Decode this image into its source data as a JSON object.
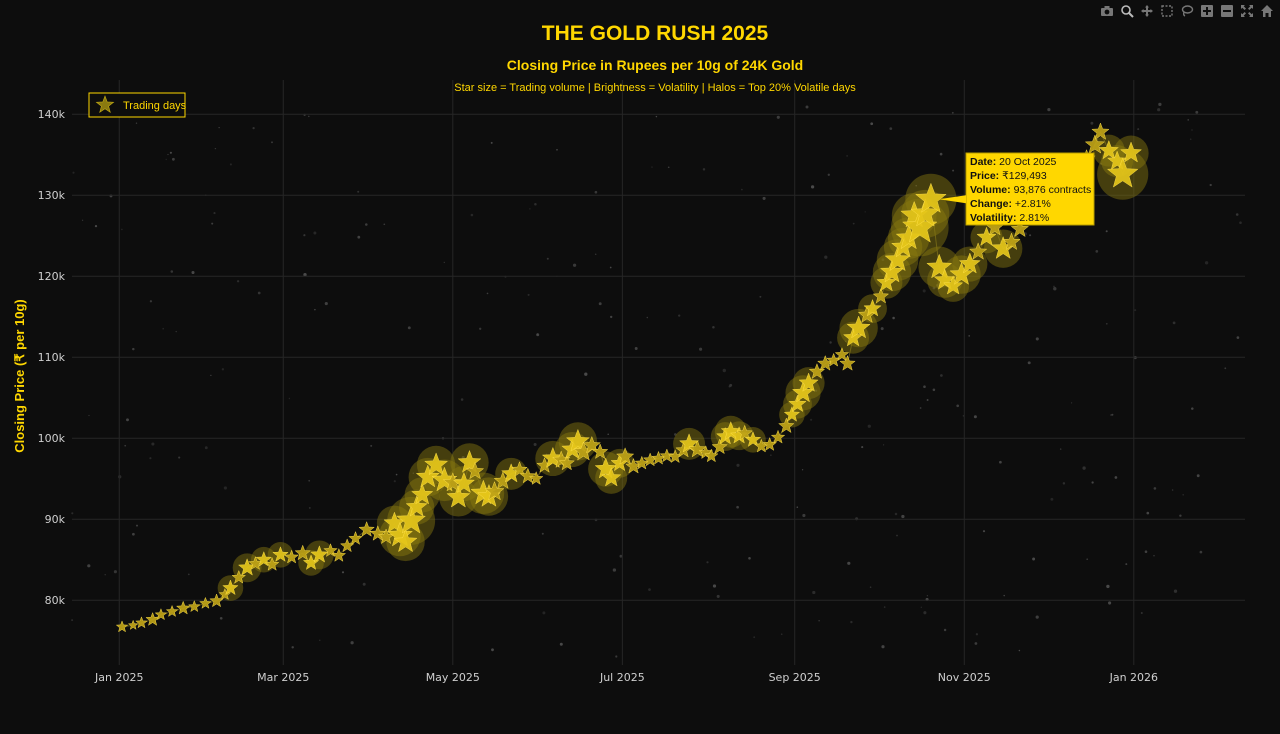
{
  "colors": {
    "accent": "#FFD700",
    "background": "#0d0d0d",
    "grid": "#262626",
    "halo": "#8a7a10",
    "tooltip_bg": "#FFD700"
  },
  "modebar": [
    "camera-icon",
    "zoom-icon",
    "pan-icon",
    "box-select-icon",
    "lasso-select-icon",
    "zoom-in-icon",
    "zoom-out-icon",
    "autoscale-icon",
    "reset-axes-icon"
  ],
  "chart_data": {
    "type": "scatter",
    "title": "THE GOLD RUSH 2025",
    "subtitle": "Closing Price in Rupees per 10g of 24K Gold",
    "caption": "Star size = Trading volume | Brightness = Volatility | Halos = Top 20% Volatile days",
    "ylabel": "Closing Price (₹ per 10g)",
    "xlabel": "",
    "xlim": [
      "2024-12-15",
      "2026-02-10"
    ],
    "ylim": [
      72000,
      142000
    ],
    "x_ticks": [
      {
        "date": "2025-01-01",
        "label": "Jan 2025"
      },
      {
        "date": "2025-03-01",
        "label": "Mar 2025"
      },
      {
        "date": "2025-05-01",
        "label": "May 2025"
      },
      {
        "date": "2025-07-01",
        "label": "Jul 2025"
      },
      {
        "date": "2025-09-01",
        "label": "Sep 2025"
      },
      {
        "date": "2025-11-01",
        "label": "Nov 2025"
      },
      {
        "date": "2026-01-01",
        "label": "Jan 2026"
      }
    ],
    "y_ticks": [
      {
        "value": 80000,
        "label": "80k"
      },
      {
        "value": 90000,
        "label": "90k"
      },
      {
        "value": 100000,
        "label": "100k"
      },
      {
        "value": 110000,
        "label": "110k"
      },
      {
        "value": 120000,
        "label": "120k"
      },
      {
        "value": 130000,
        "label": "130k"
      },
      {
        "value": 140000,
        "label": "140k"
      }
    ],
    "grid": true,
    "legend": {
      "position": "top-left",
      "entries": [
        "Trading days"
      ]
    },
    "series": [
      {
        "name": "Trading days",
        "points": [
          {
            "x": "2025-01-02",
            "y": 76700,
            "size": 6,
            "halo": false
          },
          {
            "x": "2025-01-06",
            "y": 76900,
            "size": 5,
            "halo": false
          },
          {
            "x": "2025-01-09",
            "y": 77200,
            "size": 6,
            "halo": false
          },
          {
            "x": "2025-01-13",
            "y": 77600,
            "size": 7,
            "halo": false
          },
          {
            "x": "2025-01-16",
            "y": 78200,
            "size": 6,
            "halo": false
          },
          {
            "x": "2025-01-20",
            "y": 78600,
            "size": 6,
            "halo": false
          },
          {
            "x": "2025-01-24",
            "y": 79000,
            "size": 7,
            "halo": false
          },
          {
            "x": "2025-01-28",
            "y": 79200,
            "size": 6,
            "halo": false
          },
          {
            "x": "2025-02-01",
            "y": 79600,
            "size": 6,
            "halo": false
          },
          {
            "x": "2025-02-05",
            "y": 79900,
            "size": 7,
            "halo": false
          },
          {
            "x": "2025-02-08",
            "y": 80700,
            "size": 6,
            "halo": false
          },
          {
            "x": "2025-02-10",
            "y": 81500,
            "size": 8,
            "halo": true
          },
          {
            "x": "2025-02-13",
            "y": 82800,
            "size": 7,
            "halo": false
          },
          {
            "x": "2025-02-16",
            "y": 84000,
            "size": 9,
            "halo": true
          },
          {
            "x": "2025-02-19",
            "y": 84500,
            "size": 7,
            "halo": false
          },
          {
            "x": "2025-02-22",
            "y": 85000,
            "size": 8,
            "halo": true
          },
          {
            "x": "2025-02-25",
            "y": 84400,
            "size": 7,
            "halo": false
          },
          {
            "x": "2025-02-28",
            "y": 85600,
            "size": 8,
            "halo": true
          },
          {
            "x": "2025-03-04",
            "y": 85300,
            "size": 7,
            "halo": false
          },
          {
            "x": "2025-03-08",
            "y": 85800,
            "size": 8,
            "halo": false
          },
          {
            "x": "2025-03-11",
            "y": 84600,
            "size": 8,
            "halo": true
          },
          {
            "x": "2025-03-14",
            "y": 85600,
            "size": 9,
            "halo": true
          },
          {
            "x": "2025-03-18",
            "y": 86100,
            "size": 7,
            "halo": false
          },
          {
            "x": "2025-03-21",
            "y": 85500,
            "size": 7,
            "halo": false
          },
          {
            "x": "2025-03-24",
            "y": 86700,
            "size": 7,
            "halo": false
          },
          {
            "x": "2025-03-27",
            "y": 87600,
            "size": 7,
            "halo": false
          },
          {
            "x": "2025-03-31",
            "y": 88700,
            "size": 8,
            "halo": false
          },
          {
            "x": "2025-04-04",
            "y": 88200,
            "size": 8,
            "halo": false
          },
          {
            "x": "2025-04-07",
            "y": 87800,
            "size": 8,
            "halo": false
          },
          {
            "x": "2025-04-10",
            "y": 89500,
            "size": 11,
            "halo": true
          },
          {
            "x": "2025-04-12",
            "y": 88000,
            "size": 13,
            "halo": true
          },
          {
            "x": "2025-04-14",
            "y": 87200,
            "size": 12,
            "halo": true
          },
          {
            "x": "2025-04-16",
            "y": 89800,
            "size": 15,
            "halo": true
          },
          {
            "x": "2025-04-18",
            "y": 91500,
            "size": 11,
            "halo": true
          },
          {
            "x": "2025-04-20",
            "y": 93000,
            "size": 11,
            "halo": true
          },
          {
            "x": "2025-04-22",
            "y": 95200,
            "size": 12,
            "halo": true
          },
          {
            "x": "2025-04-25",
            "y": 96700,
            "size": 12,
            "halo": true
          },
          {
            "x": "2025-04-28",
            "y": 94800,
            "size": 13,
            "halo": true
          },
          {
            "x": "2025-05-01",
            "y": 94500,
            "size": 10,
            "halo": false
          },
          {
            "x": "2025-05-03",
            "y": 92700,
            "size": 12,
            "halo": true
          },
          {
            "x": "2025-05-05",
            "y": 94400,
            "size": 11,
            "halo": true
          },
          {
            "x": "2025-05-07",
            "y": 97000,
            "size": 12,
            "halo": true
          },
          {
            "x": "2025-05-09",
            "y": 95900,
            "size": 9,
            "halo": false
          },
          {
            "x": "2025-05-12",
            "y": 93200,
            "size": 13,
            "halo": true
          },
          {
            "x": "2025-05-14",
            "y": 92800,
            "size": 12,
            "halo": true
          },
          {
            "x": "2025-05-16",
            "y": 93400,
            "size": 10,
            "halo": false
          },
          {
            "x": "2025-05-19",
            "y": 94700,
            "size": 9,
            "halo": false
          },
          {
            "x": "2025-05-22",
            "y": 95600,
            "size": 10,
            "halo": true
          },
          {
            "x": "2025-05-25",
            "y": 96100,
            "size": 8,
            "halo": false
          },
          {
            "x": "2025-05-28",
            "y": 95300,
            "size": 8,
            "halo": false
          },
          {
            "x": "2025-05-31",
            "y": 95000,
            "size": 7,
            "halo": false
          },
          {
            "x": "2025-06-03",
            "y": 96600,
            "size": 8,
            "halo": false
          },
          {
            "x": "2025-06-06",
            "y": 97500,
            "size": 11,
            "halo": true
          },
          {
            "x": "2025-06-09",
            "y": 97300,
            "size": 9,
            "halo": false
          },
          {
            "x": "2025-06-11",
            "y": 96900,
            "size": 8,
            "halo": false
          },
          {
            "x": "2025-06-13",
            "y": 98600,
            "size": 11,
            "halo": true
          },
          {
            "x": "2025-06-15",
            "y": 99600,
            "size": 12,
            "halo": true
          },
          {
            "x": "2025-06-17",
            "y": 98300,
            "size": 10,
            "halo": false
          },
          {
            "x": "2025-06-20",
            "y": 99100,
            "size": 9,
            "halo": false
          },
          {
            "x": "2025-06-23",
            "y": 98300,
            "size": 8,
            "halo": false
          },
          {
            "x": "2025-06-25",
            "y": 96200,
            "size": 11,
            "halo": true
          },
          {
            "x": "2025-06-27",
            "y": 95100,
            "size": 10,
            "halo": true
          },
          {
            "x": "2025-06-30",
            "y": 96900,
            "size": 9,
            "halo": true
          },
          {
            "x": "2025-07-02",
            "y": 97700,
            "size": 9,
            "halo": false
          },
          {
            "x": "2025-07-05",
            "y": 96500,
            "size": 8,
            "halo": false
          },
          {
            "x": "2025-07-08",
            "y": 96900,
            "size": 7,
            "halo": false
          },
          {
            "x": "2025-07-11",
            "y": 97300,
            "size": 7,
            "halo": false
          },
          {
            "x": "2025-07-14",
            "y": 97500,
            "size": 7,
            "halo": false
          },
          {
            "x": "2025-07-17",
            "y": 97800,
            "size": 7,
            "halo": false
          },
          {
            "x": "2025-07-20",
            "y": 97700,
            "size": 7,
            "halo": false
          },
          {
            "x": "2025-07-23",
            "y": 98500,
            "size": 8,
            "halo": false
          },
          {
            "x": "2025-07-25",
            "y": 99300,
            "size": 10,
            "halo": true
          },
          {
            "x": "2025-07-28",
            "y": 98600,
            "size": 9,
            "halo": false
          },
          {
            "x": "2025-07-31",
            "y": 98200,
            "size": 7,
            "halo": false
          },
          {
            "x": "2025-08-02",
            "y": 97800,
            "size": 7,
            "halo": false
          },
          {
            "x": "2025-08-05",
            "y": 98900,
            "size": 8,
            "halo": false
          },
          {
            "x": "2025-08-07",
            "y": 100200,
            "size": 9,
            "halo": true
          },
          {
            "x": "2025-08-09",
            "y": 100800,
            "size": 10,
            "halo": true
          },
          {
            "x": "2025-08-12",
            "y": 100300,
            "size": 9,
            "halo": true
          },
          {
            "x": "2025-08-14",
            "y": 100600,
            "size": 8,
            "halo": false
          },
          {
            "x": "2025-08-17",
            "y": 99800,
            "size": 8,
            "halo": true
          },
          {
            "x": "2025-08-20",
            "y": 99000,
            "size": 7,
            "halo": false
          },
          {
            "x": "2025-08-23",
            "y": 99200,
            "size": 7,
            "halo": false
          },
          {
            "x": "2025-08-26",
            "y": 100100,
            "size": 7,
            "halo": false
          },
          {
            "x": "2025-08-29",
            "y": 101500,
            "size": 8,
            "halo": false
          },
          {
            "x": "2025-08-31",
            "y": 102900,
            "size": 8,
            "halo": true
          },
          {
            "x": "2025-09-02",
            "y": 104200,
            "size": 9,
            "halo": true
          },
          {
            "x": "2025-09-04",
            "y": 105600,
            "size": 11,
            "halo": true
          },
          {
            "x": "2025-09-06",
            "y": 106800,
            "size": 10,
            "halo": true
          },
          {
            "x": "2025-09-09",
            "y": 108200,
            "size": 8,
            "halo": false
          },
          {
            "x": "2025-09-12",
            "y": 109200,
            "size": 8,
            "halo": false
          },
          {
            "x": "2025-09-15",
            "y": 109600,
            "size": 7,
            "halo": false
          },
          {
            "x": "2025-09-18",
            "y": 110300,
            "size": 7,
            "halo": false
          },
          {
            "x": "2025-09-20",
            "y": 109200,
            "size": 8,
            "halo": false
          },
          {
            "x": "2025-09-22",
            "y": 112400,
            "size": 10,
            "halo": true
          },
          {
            "x": "2025-09-24",
            "y": 113600,
            "size": 12,
            "halo": true
          },
          {
            "x": "2025-09-27",
            "y": 115200,
            "size": 9,
            "halo": false
          },
          {
            "x": "2025-09-29",
            "y": 116000,
            "size": 9,
            "halo": true
          },
          {
            "x": "2025-10-02",
            "y": 117500,
            "size": 8,
            "halo": false
          },
          {
            "x": "2025-10-04",
            "y": 119200,
            "size": 10,
            "halo": true
          },
          {
            "x": "2025-10-06",
            "y": 120500,
            "size": 12,
            "halo": true
          },
          {
            "x": "2025-10-08",
            "y": 122000,
            "size": 13,
            "halo": true
          },
          {
            "x": "2025-10-10",
            "y": 123600,
            "size": 12,
            "halo": true
          },
          {
            "x": "2025-10-12",
            "y": 124700,
            "size": 13,
            "halo": true
          },
          {
            "x": "2025-10-14",
            "y": 127500,
            "size": 14,
            "halo": true
          },
          {
            "x": "2025-10-16",
            "y": 126000,
            "size": 18,
            "halo": true
          },
          {
            "x": "2025-10-18",
            "y": 127700,
            "size": 15,
            "halo": true
          },
          {
            "x": "2025-10-20",
            "y": 129493,
            "size": 16,
            "halo": true
          },
          {
            "x": "2025-10-23",
            "y": 121100,
            "size": 13,
            "halo": true
          },
          {
            "x": "2025-10-25",
            "y": 119500,
            "size": 11,
            "halo": true
          },
          {
            "x": "2025-10-28",
            "y": 118800,
            "size": 10,
            "halo": true
          },
          {
            "x": "2025-10-31",
            "y": 120200,
            "size": 12,
            "halo": true
          },
          {
            "x": "2025-11-03",
            "y": 121500,
            "size": 11,
            "halo": true
          },
          {
            "x": "2025-11-06",
            "y": 123000,
            "size": 9,
            "halo": false
          },
          {
            "x": "2025-11-09",
            "y": 124800,
            "size": 10,
            "halo": true
          },
          {
            "x": "2025-11-12",
            "y": 126000,
            "size": 9,
            "halo": false
          },
          {
            "x": "2025-11-15",
            "y": 123400,
            "size": 12,
            "halo": true
          },
          {
            "x": "2025-11-18",
            "y": 124200,
            "size": 9,
            "halo": false
          },
          {
            "x": "2025-11-21",
            "y": 125800,
            "size": 9,
            "halo": false
          },
          {
            "x": "2025-11-24",
            "y": 127300,
            "size": 8,
            "halo": false
          },
          {
            "x": "2025-11-27",
            "y": 129500,
            "size": 9,
            "halo": false
          },
          {
            "x": "2025-11-30",
            "y": 131200,
            "size": 8,
            "halo": false
          },
          {
            "x": "2025-12-03",
            "y": 130300,
            "size": 10,
            "halo": true
          },
          {
            "x": "2025-12-06",
            "y": 132100,
            "size": 8,
            "halo": false
          },
          {
            "x": "2025-12-09",
            "y": 131800,
            "size": 8,
            "halo": false
          },
          {
            "x": "2025-12-12",
            "y": 133100,
            "size": 8,
            "halo": false
          },
          {
            "x": "2025-12-15",
            "y": 134500,
            "size": 9,
            "halo": false
          },
          {
            "x": "2025-12-18",
            "y": 136200,
            "size": 10,
            "halo": false
          },
          {
            "x": "2025-12-20",
            "y": 137800,
            "size": 9,
            "halo": false
          },
          {
            "x": "2025-12-23",
            "y": 135500,
            "size": 10,
            "halo": true
          },
          {
            "x": "2025-12-26",
            "y": 134200,
            "size": 10,
            "halo": true
          },
          {
            "x": "2025-12-28",
            "y": 132600,
            "size": 16,
            "halo": true
          },
          {
            "x": "2025-12-31",
            "y": 135200,
            "size": 11,
            "halo": true
          }
        ]
      }
    ],
    "tooltip": {
      "anchor_date": "2025-10-20",
      "lines": [
        {
          "key": "Date:",
          "value": " 20 Oct 2025"
        },
        {
          "key": "Price:",
          "value": " ₹129,493"
        },
        {
          "key": "Volume:",
          "value": " 93,876 contracts"
        },
        {
          "key": "Change:",
          "value": " +2.81%"
        },
        {
          "key": "Volatility:",
          "value": " 2.81%"
        }
      ]
    }
  }
}
